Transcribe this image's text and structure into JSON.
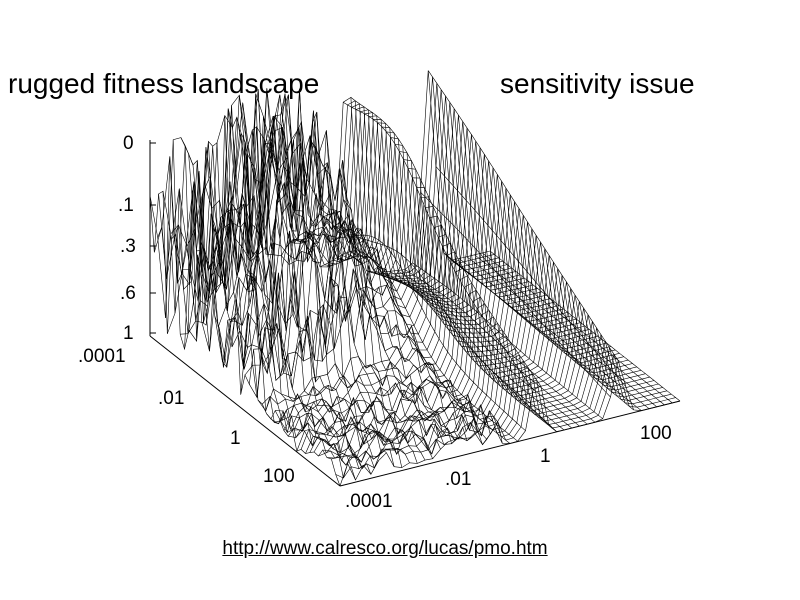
{
  "headings": [
    "rugged fitness landscape",
    "sensitivity issue"
  ],
  "figure": {
    "z_axis_labels": [
      "0",
      ".1",
      ".3",
      ".6",
      "1"
    ],
    "left_axis_labels": [
      ".0001",
      ".01",
      "1",
      "100"
    ],
    "right_axis_labels": [
      ".0001",
      ".01",
      "1",
      "100"
    ]
  },
  "link": "http://www.calresco.org/lucas/pmo.htm"
}
